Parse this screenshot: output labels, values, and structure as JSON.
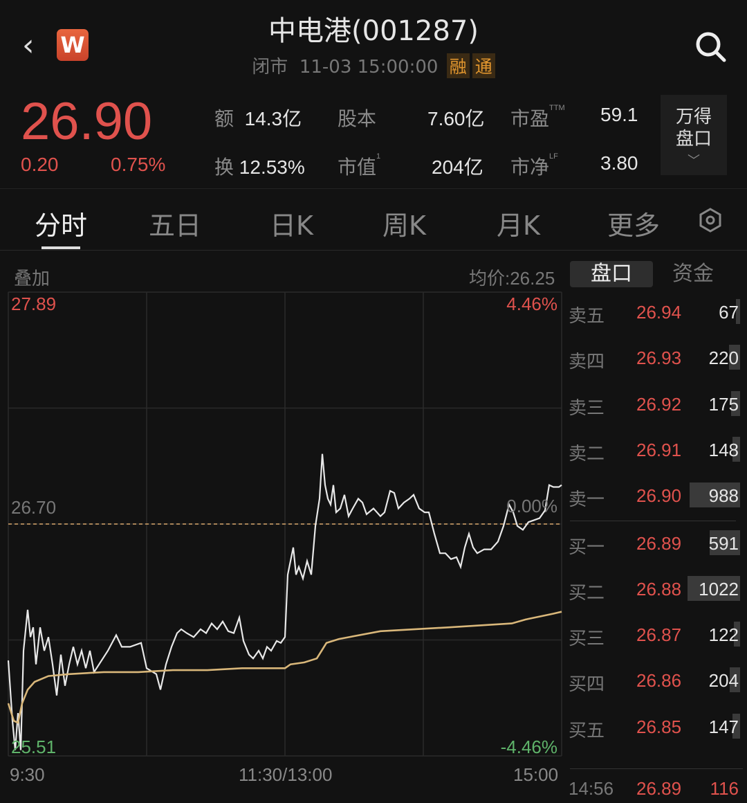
{
  "header": {
    "title": "中电港(001287)",
    "status": "闭市",
    "datetime": "11-03 15:00:00",
    "badges": [
      "融",
      "通"
    ],
    "logo": "W",
    "back_icon": "chevron-left-icon",
    "search_icon": "search-icon"
  },
  "quote": {
    "price": "26.90",
    "change": "0.20",
    "change_pct": "0.75%",
    "color_up": "#e0524d",
    "stats": [
      {
        "label": "额",
        "value": "14.3亿"
      },
      {
        "label": "股本",
        "value": "7.60亿"
      },
      {
        "label": "市盈",
        "sup": "TTM",
        "value": "59.1"
      },
      {
        "label": "换",
        "value": "12.53%"
      },
      {
        "label": "市值",
        "sup": "1",
        "value": "204亿"
      },
      {
        "label": "市净",
        "sup": "LF",
        "value": "3.80"
      }
    ],
    "wind_button": [
      "万得",
      "盘口"
    ]
  },
  "tabs": [
    {
      "label": "分时",
      "active": true
    },
    {
      "label": "五日"
    },
    {
      "label": "日K"
    },
    {
      "label": "周K"
    },
    {
      "label": "月K"
    },
    {
      "label": "更多"
    }
  ],
  "chart_header": {
    "overlay": "叠加",
    "avg_price": "均价:26.25"
  },
  "side_tabs": [
    "盘口",
    "资金"
  ],
  "chart_data": {
    "type": "line",
    "ylim": [
      25.51,
      27.89
    ],
    "y_labels_left": {
      "top": "27.89",
      "mid": "26.70",
      "bottom": "25.51"
    },
    "y_labels_right": {
      "top": "4.46%",
      "mid": "0.00%",
      "bottom": "-4.46%"
    },
    "x_labels": [
      "9:30",
      "11:30/13:00",
      "15:00"
    ],
    "x_unit": "trading minutes from 9:30 (0-240)",
    "prev_close": 26.7,
    "grid": true,
    "series": [
      {
        "color": "#e8e8e8",
        "points": [
          [
            0,
            26.0
          ],
          [
            1.8,
            25.69
          ],
          [
            3,
            25.54
          ],
          [
            4.2,
            25.73
          ],
          [
            5.4,
            25.54
          ],
          [
            6.6,
            26.05
          ],
          [
            8.4,
            26.26
          ],
          [
            9.6,
            26.12
          ],
          [
            10.8,
            26.17
          ],
          [
            12,
            25.98
          ],
          [
            13.8,
            26.17
          ],
          [
            15.6,
            26.05
          ],
          [
            17.4,
            26.12
          ],
          [
            19.2,
            25.98
          ],
          [
            21,
            25.82
          ],
          [
            22.8,
            26.03
          ],
          [
            24.6,
            25.87
          ],
          [
            26.4,
            25.98
          ],
          [
            28.2,
            26.07
          ],
          [
            30,
            25.98
          ],
          [
            31.8,
            26.05
          ],
          [
            33.6,
            25.96
          ],
          [
            35.4,
            26.05
          ],
          [
            37.2,
            25.94
          ],
          [
            43.2,
            26.05
          ],
          [
            46.8,
            26.13
          ],
          [
            49.2,
            26.07
          ],
          [
            52.8,
            26.07
          ],
          [
            57.6,
            26.09
          ],
          [
            60,
            25.96
          ],
          [
            64.2,
            25.93
          ],
          [
            66,
            25.85
          ],
          [
            68.4,
            25.98
          ],
          [
            70.8,
            26.07
          ],
          [
            73.2,
            26.14
          ],
          [
            75,
            26.16
          ],
          [
            77.4,
            26.14
          ],
          [
            80.4,
            26.12
          ],
          [
            83.4,
            26.16
          ],
          [
            85.8,
            26.14
          ],
          [
            88.2,
            26.19
          ],
          [
            90.6,
            26.16
          ],
          [
            93,
            26.2
          ],
          [
            95.4,
            26.15
          ],
          [
            97.8,
            26.14
          ],
          [
            100.2,
            26.22
          ],
          [
            102,
            26.1
          ],
          [
            104.4,
            26.03
          ],
          [
            106.2,
            26.01
          ],
          [
            108.6,
            26.05
          ],
          [
            110.4,
            26.01
          ],
          [
            112.2,
            26.07
          ],
          [
            114,
            26.05
          ],
          [
            116.4,
            26.1
          ],
          [
            118.2,
            26.09
          ],
          [
            120,
            26.12
          ],
          [
            121.2,
            26.44
          ],
          [
            122.4,
            26.51
          ],
          [
            123.6,
            26.58
          ],
          [
            124.8,
            26.44
          ],
          [
            126,
            26.48
          ],
          [
            127.8,
            26.42
          ],
          [
            129.6,
            26.51
          ],
          [
            131.4,
            26.44
          ],
          [
            133.2,
            26.69
          ],
          [
            135,
            26.83
          ],
          [
            136.2,
            27.06
          ],
          [
            137.4,
            26.9
          ],
          [
            138.6,
            26.83
          ],
          [
            139.8,
            26.8
          ],
          [
            141,
            26.9
          ],
          [
            142.2,
            26.76
          ],
          [
            144,
            26.78
          ],
          [
            145.8,
            26.85
          ],
          [
            147.6,
            26.74
          ],
          [
            149.4,
            26.78
          ],
          [
            151.8,
            26.83
          ],
          [
            153.6,
            26.81
          ],
          [
            155.4,
            26.75
          ],
          [
            158.4,
            26.78
          ],
          [
            161.4,
            26.74
          ],
          [
            163.2,
            26.76
          ],
          [
            165.6,
            26.87
          ],
          [
            167.4,
            26.86
          ],
          [
            169.2,
            26.78
          ],
          [
            171.6,
            26.81
          ],
          [
            174,
            26.83
          ],
          [
            175.8,
            26.85
          ],
          [
            178.2,
            26.78
          ],
          [
            180.6,
            26.76
          ],
          [
            182.4,
            26.76
          ],
          [
            184.8,
            26.65
          ],
          [
            187.2,
            26.55
          ],
          [
            189.6,
            26.55
          ],
          [
            192,
            26.52
          ],
          [
            194.4,
            26.53
          ],
          [
            196.2,
            26.48
          ],
          [
            198,
            26.58
          ],
          [
            199.8,
            26.65
          ],
          [
            201.6,
            26.58
          ],
          [
            203.4,
            26.55
          ],
          [
            206.4,
            26.57
          ],
          [
            209.4,
            26.57
          ],
          [
            212.4,
            26.61
          ],
          [
            214.8,
            26.69
          ],
          [
            217.2,
            26.8
          ],
          [
            219,
            26.76
          ],
          [
            220.8,
            26.69
          ],
          [
            223.2,
            26.67
          ],
          [
            225.6,
            26.71
          ],
          [
            228,
            26.72
          ],
          [
            230.4,
            26.73
          ],
          [
            232.8,
            26.77
          ],
          [
            234.6,
            26.9
          ],
          [
            236.4,
            26.89
          ],
          [
            238.8,
            26.89
          ],
          [
            240,
            26.9
          ]
        ]
      },
      {
        "color": "#d9b77a",
        "points": [
          [
            0,
            25.78
          ],
          [
            2.4,
            25.69
          ],
          [
            4.2,
            25.68
          ],
          [
            6,
            25.78
          ],
          [
            8.4,
            25.85
          ],
          [
            11.4,
            25.89
          ],
          [
            17.4,
            25.92
          ],
          [
            26.4,
            25.93
          ],
          [
            41.4,
            25.94
          ],
          [
            56.4,
            25.94
          ],
          [
            71.4,
            25.95
          ],
          [
            86.4,
            25.95
          ],
          [
            101.4,
            25.96
          ],
          [
            120,
            25.96
          ],
          [
            122.4,
            25.98
          ],
          [
            128.4,
            25.99
          ],
          [
            133.8,
            26.01
          ],
          [
            135.9,
            26.05
          ],
          [
            138,
            26.09
          ],
          [
            143.4,
            26.11
          ],
          [
            161.4,
            26.15
          ],
          [
            191.4,
            26.17
          ],
          [
            218.4,
            26.19
          ],
          [
            224.4,
            26.21
          ],
          [
            236.4,
            26.24
          ],
          [
            240,
            26.25
          ]
        ]
      }
    ]
  },
  "order_book": {
    "asks": [
      {
        "name": "卖五",
        "price": "26.94",
        "vol": "67"
      },
      {
        "name": "卖四",
        "price": "26.93",
        "vol": "220"
      },
      {
        "name": "卖三",
        "price": "26.92",
        "vol": "175"
      },
      {
        "name": "卖二",
        "price": "26.91",
        "vol": "148"
      },
      {
        "name": "卖一",
        "price": "26.90",
        "vol": "988"
      }
    ],
    "bids": [
      {
        "name": "买一",
        "price": "26.89",
        "vol": "591"
      },
      {
        "name": "买二",
        "price": "26.88",
        "vol": "1022"
      },
      {
        "name": "买三",
        "price": "26.87",
        "vol": "122"
      },
      {
        "name": "买四",
        "price": "26.86",
        "vol": "204"
      },
      {
        "name": "买五",
        "price": "26.85",
        "vol": "147"
      }
    ],
    "last_trade": {
      "time": "14:56",
      "price": "26.89",
      "vol": "116"
    }
  }
}
